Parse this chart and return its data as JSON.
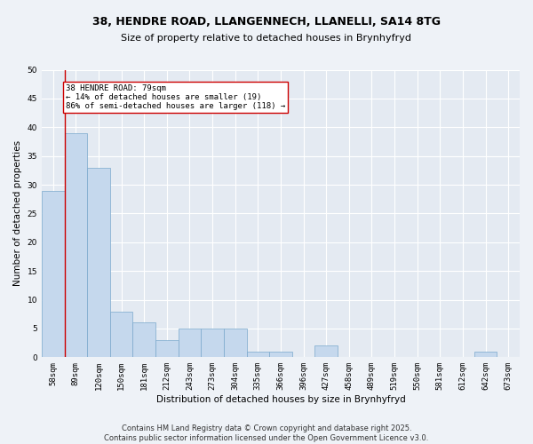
{
  "title_line1": "38, HENDRE ROAD, LLANGENNECH, LLANELLI, SA14 8TG",
  "title_line2": "Size of property relative to detached houses in Brynhyfryd",
  "xlabel": "Distribution of detached houses by size in Brynhyfryd",
  "ylabel": "Number of detached properties",
  "categories": [
    "58sqm",
    "89sqm",
    "120sqm",
    "150sqm",
    "181sqm",
    "212sqm",
    "243sqm",
    "273sqm",
    "304sqm",
    "335sqm",
    "366sqm",
    "396sqm",
    "427sqm",
    "458sqm",
    "489sqm",
    "519sqm",
    "550sqm",
    "581sqm",
    "612sqm",
    "642sqm",
    "673sqm"
  ],
  "values": [
    29,
    39,
    33,
    8,
    6,
    3,
    5,
    5,
    5,
    1,
    1,
    0,
    2,
    0,
    0,
    0,
    0,
    0,
    0,
    1,
    0
  ],
  "bar_color": "#c5d8ed",
  "bar_edge_color": "#7aa8cc",
  "vline_color": "#cc0000",
  "annotation_text": "38 HENDRE ROAD: 79sqm\n← 14% of detached houses are smaller (19)\n86% of semi-detached houses are larger (118) →",
  "annotation_box_color": "#ffffff",
  "annotation_box_edge": "#cc0000",
  "ylim": [
    0,
    50
  ],
  "yticks": [
    0,
    5,
    10,
    15,
    20,
    25,
    30,
    35,
    40,
    45,
    50
  ],
  "footer": "Contains HM Land Registry data © Crown copyright and database right 2025.\nContains public sector information licensed under the Open Government Licence v3.0.",
  "bg_color": "#eef2f7",
  "plot_bg_color": "#e4eaf2",
  "grid_color": "#ffffff",
  "title_fontsize": 9,
  "subtitle_fontsize": 8,
  "tick_fontsize": 6.5,
  "label_fontsize": 7.5,
  "footer_fontsize": 6,
  "annotation_fontsize": 6.5
}
